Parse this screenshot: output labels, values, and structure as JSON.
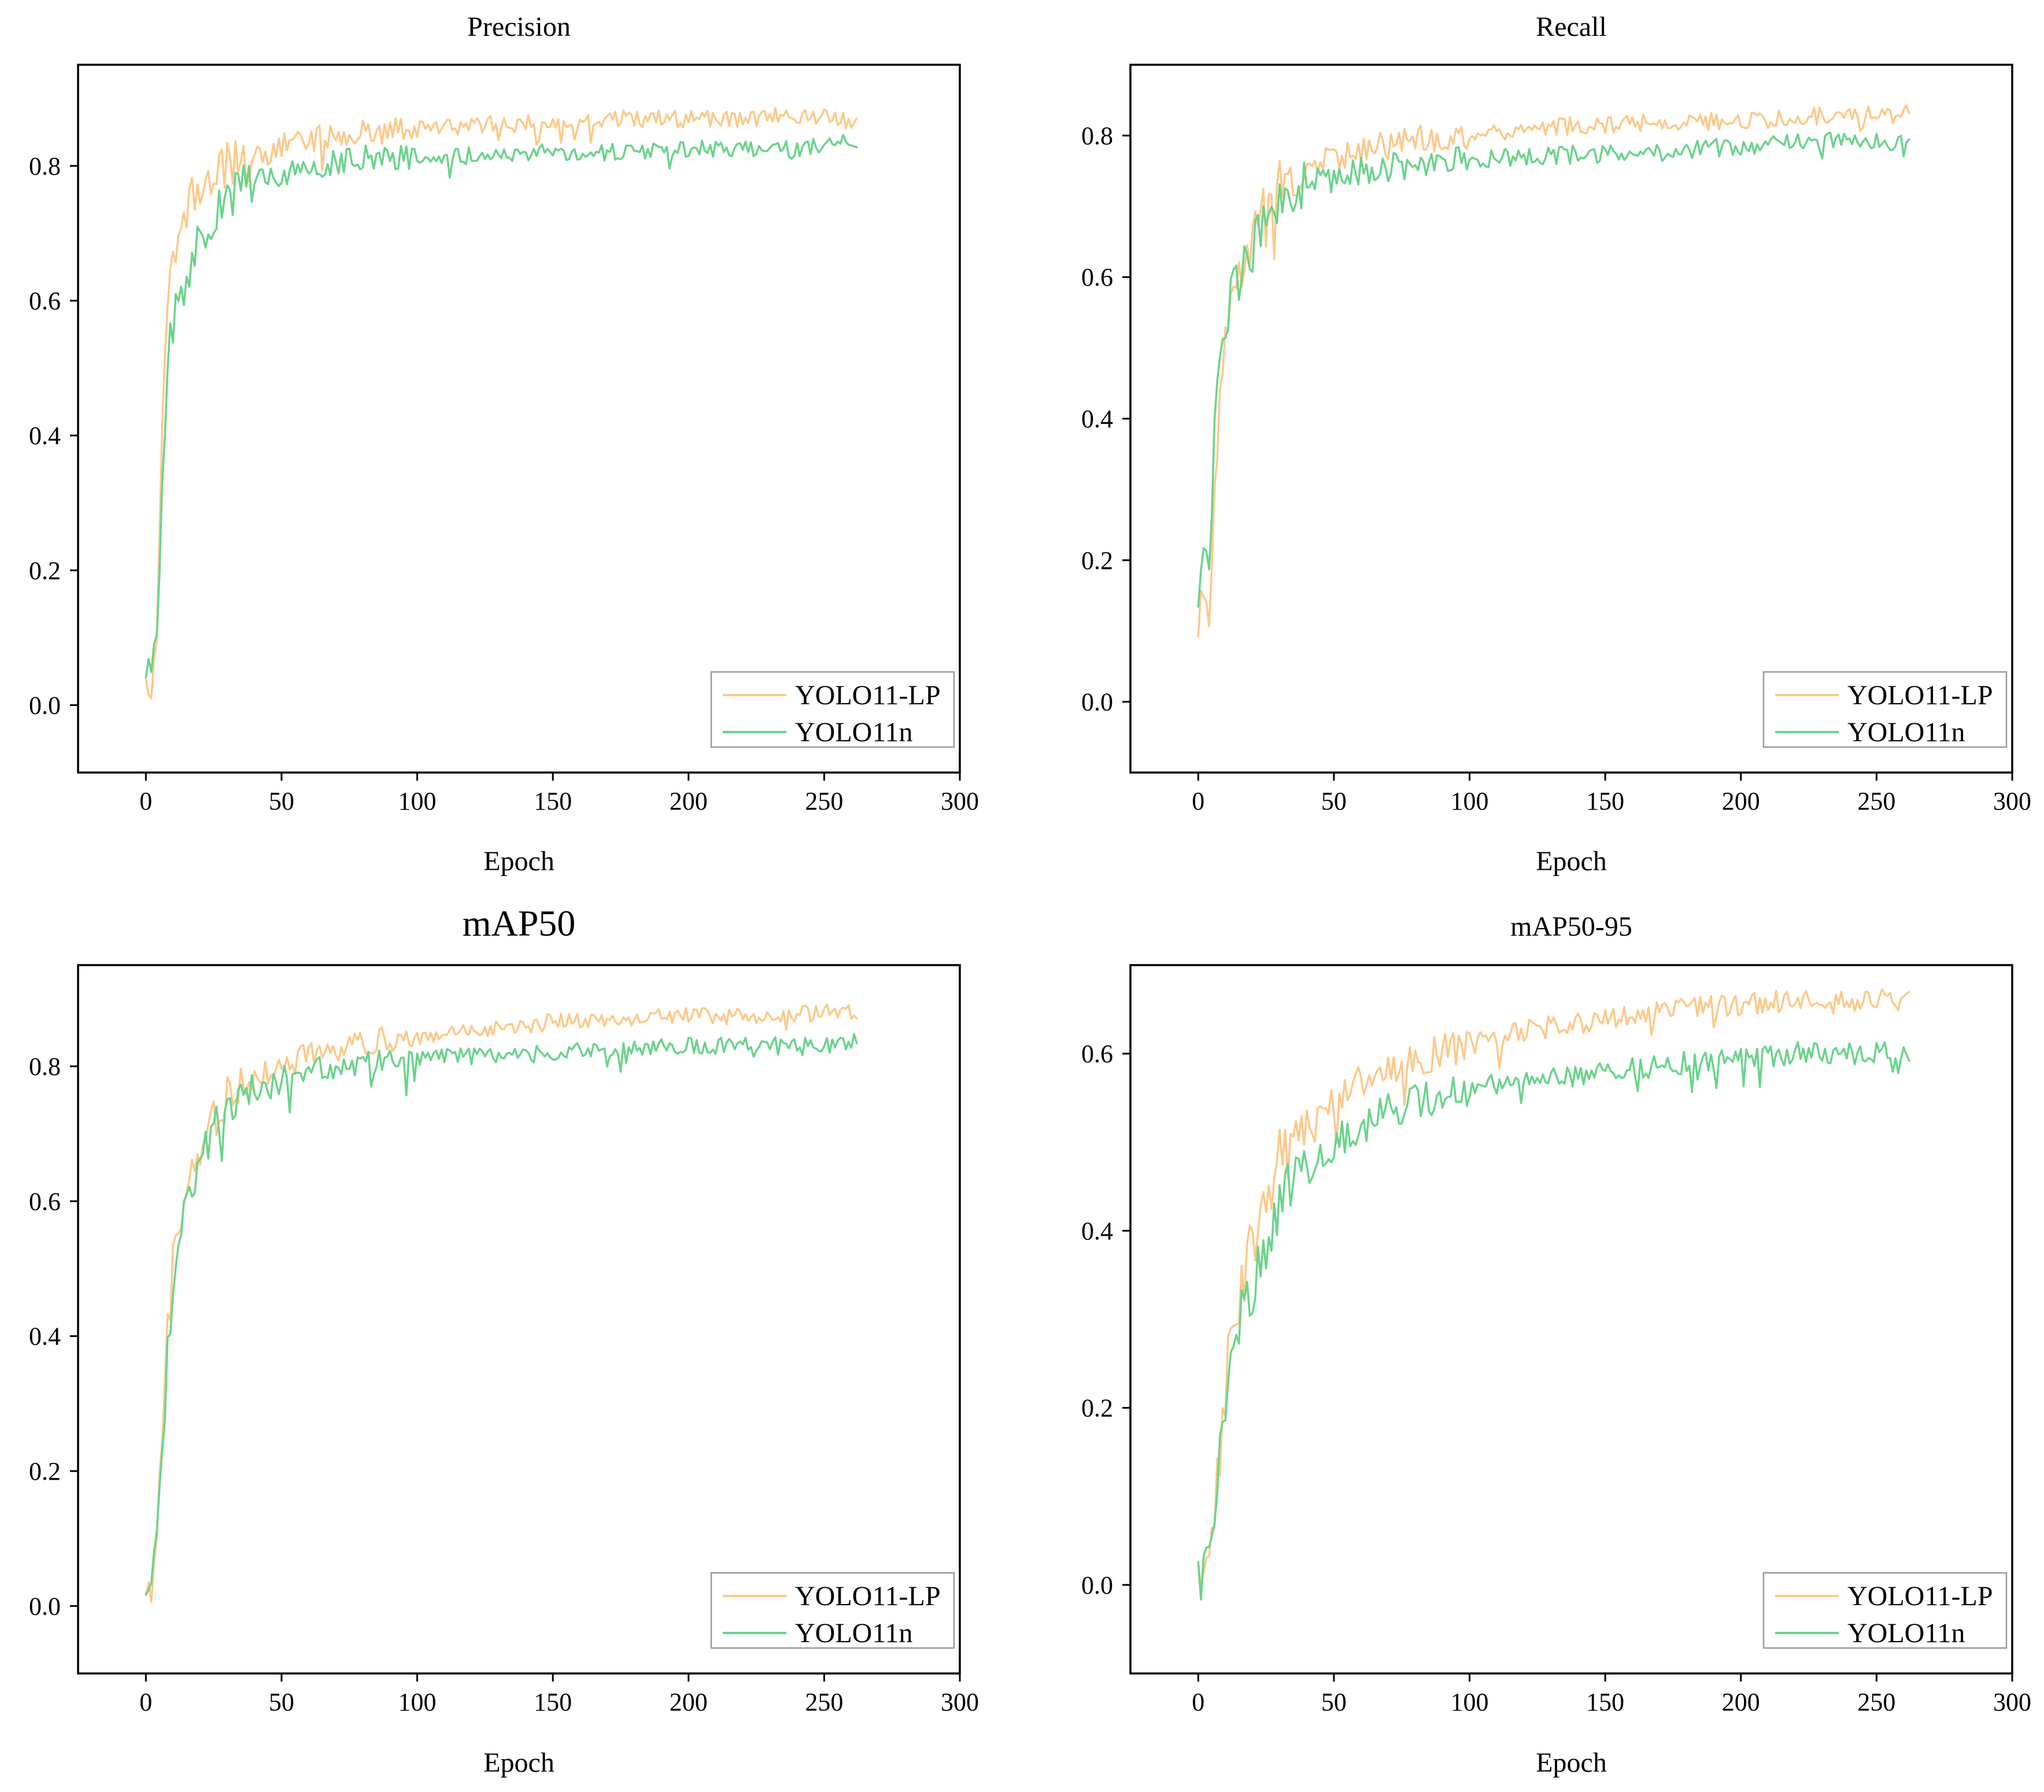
{
  "colors": {
    "lp": "#FDC98A",
    "n": "#6BD38C",
    "axis": "#000000"
  },
  "chart_data": [
    {
      "type": "line",
      "title": "Precision",
      "xlabel": "Epoch",
      "ylabel": "",
      "xlim": [
        -25,
        300
      ],
      "ylim": [
        -0.1,
        0.95
      ],
      "xticks": [
        "0",
        "50",
        "100",
        "150",
        "200",
        "250",
        "300"
      ],
      "yticks": [
        "0.0",
        "0.2",
        "0.4",
        "0.6",
        "0.8"
      ],
      "legend": "bottom-right",
      "series": [
        {
          "name": "YOLO11-LP",
          "color": "#FDC98A",
          "x": [
            0,
            2,
            4,
            6,
            8,
            10,
            12,
            15,
            18,
            20,
            25,
            30,
            35,
            40,
            50,
            60,
            70,
            80,
            100,
            120,
            150,
            180,
            200,
            220,
            240,
            250,
            262
          ],
          "y": [
            0.03,
            0.03,
            0.1,
            0.4,
            0.58,
            0.65,
            0.7,
            0.73,
            0.76,
            0.77,
            0.79,
            0.8,
            0.81,
            0.81,
            0.83,
            0.84,
            0.845,
            0.85,
            0.855,
            0.86,
            0.865,
            0.87,
            0.87,
            0.87,
            0.875,
            0.875,
            0.86
          ]
        },
        {
          "name": "YOLO11n",
          "color": "#6BD38C",
          "x": [
            0,
            2,
            4,
            6,
            8,
            10,
            12,
            15,
            18,
            20,
            25,
            30,
            35,
            40,
            50,
            60,
            70,
            80,
            100,
            120,
            150,
            180,
            200,
            220,
            240,
            250,
            262
          ],
          "y": [
            0.03,
            0.05,
            0.1,
            0.3,
            0.5,
            0.57,
            0.6,
            0.64,
            0.68,
            0.7,
            0.73,
            0.75,
            0.77,
            0.78,
            0.79,
            0.8,
            0.805,
            0.81,
            0.815,
            0.815,
            0.82,
            0.82,
            0.825,
            0.825,
            0.825,
            0.83,
            0.84
          ]
        }
      ]
    },
    {
      "type": "line",
      "title": "Recall",
      "xlabel": "Epoch",
      "ylabel": "",
      "xlim": [
        -25,
        300
      ],
      "ylim": [
        -0.1,
        0.9
      ],
      "xticks": [
        "0",
        "50",
        "100",
        "150",
        "200",
        "250",
        "300"
      ],
      "yticks": [
        "0.0",
        "0.2",
        "0.4",
        "0.6",
        "0.8"
      ],
      "legend": "bottom-right",
      "series": [
        {
          "name": "YOLO11-LP",
          "color": "#FDC98A",
          "x": [
            0,
            2,
            4,
            6,
            8,
            10,
            12,
            15,
            18,
            20,
            25,
            30,
            35,
            40,
            50,
            60,
            70,
            80,
            100,
            120,
            150,
            180,
            200,
            220,
            240,
            250,
            262
          ],
          "y": [
            0.12,
            0.14,
            0.13,
            0.3,
            0.42,
            0.5,
            0.55,
            0.6,
            0.63,
            0.66,
            0.7,
            0.73,
            0.74,
            0.75,
            0.77,
            0.78,
            0.79,
            0.795,
            0.8,
            0.81,
            0.815,
            0.82,
            0.82,
            0.825,
            0.83,
            0.83,
            0.83
          ]
        },
        {
          "name": "YOLO11n",
          "color": "#6BD38C",
          "x": [
            0,
            2,
            4,
            6,
            8,
            10,
            12,
            15,
            18,
            20,
            25,
            30,
            35,
            40,
            50,
            60,
            70,
            80,
            100,
            120,
            150,
            180,
            200,
            220,
            240,
            250,
            262
          ],
          "y": [
            0.16,
            0.19,
            0.2,
            0.38,
            0.48,
            0.54,
            0.57,
            0.6,
            0.62,
            0.64,
            0.68,
            0.71,
            0.72,
            0.73,
            0.74,
            0.75,
            0.755,
            0.76,
            0.765,
            0.77,
            0.775,
            0.78,
            0.785,
            0.79,
            0.795,
            0.79,
            0.79
          ]
        }
      ]
    },
    {
      "type": "line",
      "title": "mAP50",
      "xlabel": "Epoch",
      "ylabel": "",
      "xlim": [
        -25,
        300
      ],
      "ylim": [
        -0.1,
        0.95
      ],
      "xticks": [
        "0",
        "50",
        "100",
        "150",
        "200",
        "250",
        "300"
      ],
      "yticks": [
        "0.0",
        "0.2",
        "0.4",
        "0.6",
        "0.8"
      ],
      "legend": "bottom-right",
      "series": [
        {
          "name": "YOLO11-LP",
          "color": "#FDC98A",
          "x": [
            0,
            2,
            4,
            6,
            8,
            10,
            12,
            15,
            18,
            20,
            25,
            30,
            35,
            40,
            50,
            60,
            70,
            80,
            100,
            120,
            150,
            180,
            200,
            220,
            240,
            250,
            262
          ],
          "y": [
            0.02,
            0.03,
            0.08,
            0.25,
            0.4,
            0.5,
            0.57,
            0.62,
            0.66,
            0.68,
            0.72,
            0.75,
            0.77,
            0.78,
            0.8,
            0.815,
            0.825,
            0.835,
            0.845,
            0.855,
            0.865,
            0.87,
            0.875,
            0.875,
            0.878,
            0.88,
            0.878
          ]
        },
        {
          "name": "YOLO11n",
          "color": "#6BD38C",
          "x": [
            0,
            2,
            4,
            6,
            8,
            10,
            12,
            15,
            18,
            20,
            25,
            30,
            35,
            40,
            50,
            60,
            70,
            80,
            100,
            120,
            150,
            180,
            200,
            220,
            240,
            250,
            262
          ],
          "y": [
            0.02,
            0.04,
            0.08,
            0.22,
            0.38,
            0.48,
            0.55,
            0.6,
            0.63,
            0.66,
            0.7,
            0.73,
            0.75,
            0.76,
            0.78,
            0.79,
            0.8,
            0.805,
            0.81,
            0.815,
            0.82,
            0.825,
            0.83,
            0.83,
            0.83,
            0.832,
            0.838
          ]
        }
      ]
    },
    {
      "type": "line",
      "title": "mAP50-95",
      "xlabel": "Epoch",
      "ylabel": "",
      "xlim": [
        -25,
        300
      ],
      "ylim": [
        -0.1,
        0.7
      ],
      "xticks": [
        "0",
        "50",
        "100",
        "150",
        "200",
        "250",
        "300"
      ],
      "yticks": [
        "0.0",
        "0.2",
        "0.4",
        "0.6"
      ],
      "legend": "bottom-right",
      "series": [
        {
          "name": "YOLO11-LP",
          "color": "#FDC98A",
          "x": [
            0,
            2,
            4,
            6,
            8,
            10,
            12,
            15,
            18,
            20,
            25,
            30,
            35,
            40,
            50,
            60,
            70,
            80,
            100,
            120,
            150,
            180,
            200,
            220,
            240,
            250,
            262
          ],
          "y": [
            0.005,
            0.01,
            0.03,
            0.08,
            0.15,
            0.22,
            0.28,
            0.33,
            0.36,
            0.39,
            0.44,
            0.48,
            0.5,
            0.52,
            0.55,
            0.57,
            0.585,
            0.595,
            0.61,
            0.625,
            0.64,
            0.65,
            0.655,
            0.66,
            0.66,
            0.662,
            0.66
          ]
        },
        {
          "name": "YOLO11n",
          "color": "#6BD38C",
          "x": [
            0,
            2,
            4,
            6,
            8,
            10,
            12,
            15,
            18,
            20,
            25,
            30,
            35,
            40,
            50,
            60,
            70,
            80,
            100,
            120,
            150,
            180,
            200,
            220,
            240,
            250,
            262
          ],
          "y": [
            0.005,
            0.01,
            0.03,
            0.07,
            0.14,
            0.2,
            0.25,
            0.29,
            0.32,
            0.34,
            0.39,
            0.43,
            0.45,
            0.47,
            0.5,
            0.52,
            0.535,
            0.545,
            0.56,
            0.57,
            0.58,
            0.59,
            0.595,
            0.6,
            0.6,
            0.603,
            0.605
          ]
        }
      ]
    }
  ]
}
